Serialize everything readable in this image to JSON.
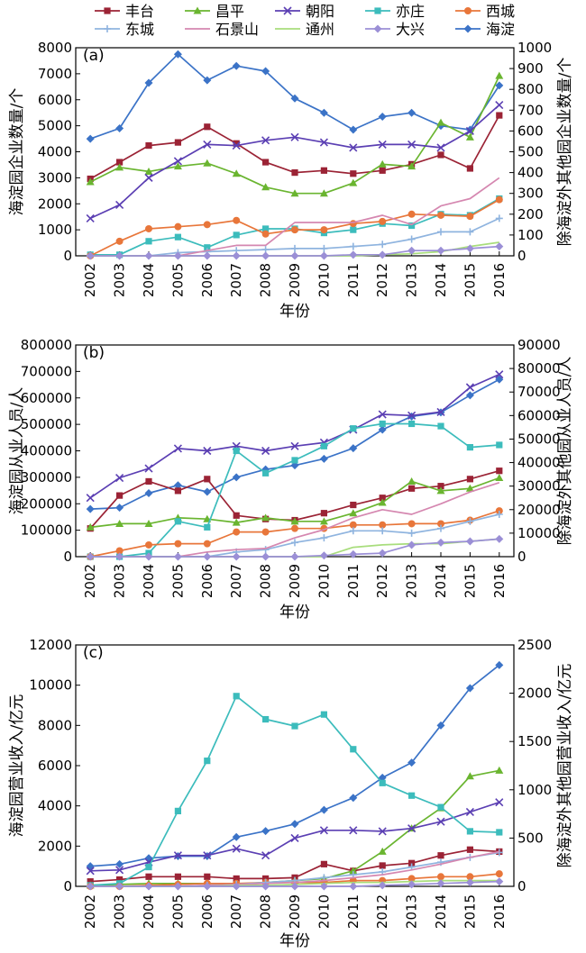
{
  "legend": [
    {
      "name": "丰台",
      "color": "#9b2335",
      "marker": "square"
    },
    {
      "name": "昌平",
      "color": "#6ab530",
      "marker": "triangle"
    },
    {
      "name": "朝阳",
      "color": "#5b3fb3",
      "marker": "x"
    },
    {
      "name": "亦庄",
      "color": "#3cbcbc",
      "marker": "square"
    },
    {
      "name": "西城",
      "color": "#e8763a",
      "marker": "circle"
    },
    {
      "name": "东城",
      "color": "#8fb4df",
      "marker": "plus"
    },
    {
      "name": "石景山",
      "color": "#d587b0",
      "marker": "none"
    },
    {
      "name": "通州",
      "color": "#a8dd7c",
      "marker": "none"
    },
    {
      "name": "大兴",
      "color": "#9b8fd6",
      "marker": "diamond"
    },
    {
      "name": "海淀",
      "color": "#3b73c7",
      "marker": "diamond"
    }
  ],
  "xlabel": "年份",
  "chart_data": [
    {
      "type": "line",
      "panel_label": "(a)",
      "categories": [
        "2002",
        "2003",
        "2004",
        "2005",
        "2006",
        "2007",
        "2008",
        "2009",
        "2010",
        "2011",
        "2012",
        "2013",
        "2014",
        "2015",
        "2016"
      ],
      "xlabel": "年份",
      "ylabel_left": "海淀园企业数量/个",
      "ylabel_right": "除海淀外其他园企业数量/个",
      "ylim_left": [
        0,
        8000
      ],
      "ylim_right": [
        0,
        1000
      ],
      "yticks_left": [
        "0",
        "1000",
        "2000",
        "3000",
        "4000",
        "5000",
        "6000",
        "7000",
        "8000"
      ],
      "yticks_right": [
        "0",
        "100",
        "200",
        "300",
        "400",
        "500",
        "600",
        "700",
        "800",
        "900",
        "1000"
      ],
      "series": [
        {
          "name": "海淀",
          "axis": "left",
          "values": [
            4500,
            4900,
            6650,
            7750,
            6750,
            7300,
            7100,
            6050,
            5500,
            4850,
            5350,
            5500,
            5000,
            4850,
            6550
          ]
        },
        {
          "name": "丰台",
          "axis": "right",
          "values": [
            370,
            450,
            530,
            545,
            620,
            540,
            450,
            400,
            410,
            395,
            410,
            440,
            485,
            420,
            675
          ]
        },
        {
          "name": "昌平",
          "axis": "right",
          "values": [
            355,
            425,
            405,
            430,
            445,
            395,
            330,
            300,
            300,
            350,
            440,
            430,
            640,
            570,
            865
          ]
        },
        {
          "name": "朝阳",
          "axis": "right",
          "values": [
            180,
            245,
            375,
            455,
            535,
            530,
            555,
            570,
            545,
            520,
            535,
            535,
            520,
            600,
            725
          ]
        },
        {
          "name": "亦庄",
          "axis": "right",
          "values": [
            5,
            5,
            70,
            90,
            40,
            100,
            130,
            130,
            110,
            125,
            155,
            145,
            200,
            195,
            275
          ]
        },
        {
          "name": "西城",
          "axis": "right",
          "values": [
            0,
            70,
            130,
            140,
            150,
            170,
            105,
            125,
            125,
            155,
            165,
            200,
            195,
            190,
            270
          ]
        },
        {
          "name": "东城",
          "axis": "right",
          "values": [
            0,
            0,
            0,
            15,
            20,
            25,
            30,
            35,
            35,
            45,
            55,
            80,
            115,
            115,
            180
          ]
        },
        {
          "name": "石景山",
          "axis": "right",
          "values": [
            0,
            0,
            0,
            0,
            25,
            50,
            50,
            160,
            160,
            160,
            195,
            150,
            240,
            275,
            375
          ]
        },
        {
          "name": "通州",
          "axis": "right",
          "values": [
            0,
            0,
            0,
            0,
            0,
            0,
            0,
            0,
            0,
            0,
            5,
            10,
            20,
            45,
            65
          ]
        },
        {
          "name": "大兴",
          "axis": "right",
          "values": [
            0,
            0,
            0,
            0,
            0,
            0,
            0,
            0,
            0,
            5,
            5,
            25,
            25,
            35,
            45
          ]
        }
      ]
    },
    {
      "type": "line",
      "panel_label": "(b)",
      "categories": [
        "2002",
        "2003",
        "2004",
        "2005",
        "2006",
        "2007",
        "2008",
        "2009",
        "2010",
        "2011",
        "2012",
        "2013",
        "2014",
        "2015",
        "2016"
      ],
      "xlabel": "年份",
      "ylabel_left": "海淀园从业人员/人",
      "ylabel_right": "除海淀外其他园从业人员/人",
      "ylim_left": [
        0,
        800000
      ],
      "ylim_right": [
        0,
        90000
      ],
      "yticks_left": [
        "0",
        "100000",
        "200000",
        "300000",
        "400000",
        "500000",
        "600000",
        "700000",
        "800000"
      ],
      "yticks_right": [
        "0",
        "10000",
        "20000",
        "30000",
        "40000",
        "50000",
        "60000",
        "70000",
        "80000",
        "90000"
      ],
      "series": [
        {
          "name": "海淀",
          "axis": "left",
          "values": [
            180000,
            185000,
            240000,
            270000,
            245000,
            300000,
            330000,
            345000,
            370000,
            410000,
            480000,
            530000,
            545000,
            610000,
            670000
          ]
        },
        {
          "name": "丰台",
          "axis": "right",
          "values": [
            12000,
            26000,
            32000,
            28000,
            33000,
            17500,
            16000,
            15500,
            18500,
            22000,
            25000,
            29000,
            30000,
            33000,
            36500
          ]
        },
        {
          "name": "昌平",
          "axis": "right",
          "values": [
            12500,
            14000,
            14000,
            16500,
            16000,
            14500,
            16500,
            15000,
            15000,
            18500,
            23000,
            32000,
            28000,
            29000,
            33500
          ]
        },
        {
          "name": "朝阳",
          "axis": "right",
          "values": [
            25000,
            33500,
            37500,
            46000,
            45000,
            47000,
            45000,
            47000,
            48500,
            54000,
            60500,
            60000,
            61500,
            72000,
            77500
          ]
        },
        {
          "name": "亦庄",
          "axis": "right",
          "values": [
            0,
            0,
            1500,
            15000,
            12500,
            45000,
            35500,
            41000,
            47000,
            54500,
            56500,
            56500,
            55500,
            46500,
            47500
          ]
        },
        {
          "name": "西城",
          "axis": "right",
          "values": [
            0,
            2500,
            5000,
            5500,
            5500,
            10500,
            10500,
            12000,
            12000,
            13500,
            13500,
            14000,
            14000,
            15500,
            19500
          ]
        },
        {
          "name": "东城",
          "axis": "right",
          "values": [
            0,
            0,
            0,
            0,
            0,
            2000,
            3000,
            6000,
            8000,
            11000,
            11000,
            10000,
            12000,
            15000,
            18000
          ]
        },
        {
          "name": "石景山",
          "axis": "right",
          "values": [
            0,
            0,
            0,
            0,
            2000,
            3000,
            3500,
            8000,
            11500,
            16500,
            20000,
            18000,
            22500,
            27500,
            31500
          ]
        },
        {
          "name": "通州",
          "axis": "right",
          "values": [
            0,
            0,
            0,
            0,
            0,
            0,
            0,
            0,
            0,
            4000,
            5000,
            5500,
            5500,
            6500,
            7500
          ]
        },
        {
          "name": "大兴",
          "axis": "right",
          "values": [
            0,
            0,
            0,
            0,
            0,
            0,
            0,
            0,
            500,
            1000,
            1500,
            5000,
            6000,
            6500,
            7500
          ]
        }
      ]
    },
    {
      "type": "line",
      "panel_label": "(c)",
      "categories": [
        "2002",
        "2003",
        "2004",
        "2005",
        "2006",
        "2007",
        "2008",
        "2009",
        "2010",
        "2011",
        "2012",
        "2013",
        "2014",
        "2015",
        "2016"
      ],
      "xlabel": "年份",
      "ylabel_left": "海淀园营业收入/亿元",
      "ylabel_right": "除海淀外其他园营业收入/亿元",
      "ylim_left": [
        0,
        12000
      ],
      "ylim_right": [
        0,
        2500
      ],
      "yticks_left": [
        "0",
        "2000",
        "4000",
        "6000",
        "8000",
        "10000",
        "12000"
      ],
      "yticks_right": [
        "0",
        "500",
        "1000",
        "1500",
        "2000",
        "2500"
      ],
      "series": [
        {
          "name": "海淀",
          "axis": "left",
          "values": [
            1000,
            1100,
            1400,
            1500,
            1500,
            2450,
            2750,
            3100,
            3800,
            4400,
            5400,
            6150,
            8000,
            9850,
            11000
          ]
        },
        {
          "name": "丰台",
          "axis": "right",
          "values": [
            50,
            70,
            100,
            100,
            100,
            80,
            80,
            90,
            230,
            160,
            215,
            240,
            320,
            380,
            360
          ]
        },
        {
          "name": "昌平",
          "axis": "right",
          "values": [
            10,
            20,
            30,
            30,
            30,
            25,
            40,
            60,
            80,
            160,
            360,
            600,
            810,
            1140,
            1200
          ]
        },
        {
          "name": "朝阳",
          "axis": "right",
          "values": [
            160,
            170,
            250,
            320,
            320,
            390,
            320,
            500,
            580,
            580,
            570,
            600,
            670,
            770,
            870
          ]
        },
        {
          "name": "亦庄",
          "axis": "right",
          "values": [
            10,
            30,
            200,
            780,
            1300,
            1970,
            1730,
            1660,
            1780,
            1420,
            1070,
            940,
            820,
            570,
            560
          ]
        },
        {
          "name": "西城",
          "axis": "right",
          "values": [
            0,
            0,
            10,
            20,
            30,
            30,
            40,
            40,
            40,
            60,
            60,
            80,
            100,
            100,
            130
          ]
        },
        {
          "name": "东城",
          "axis": "right",
          "values": [
            0,
            0,
            0,
            0,
            10,
            20,
            40,
            60,
            90,
            120,
            150,
            200,
            250,
            300,
            350
          ]
        },
        {
          "name": "石景山",
          "axis": "right",
          "values": [
            0,
            0,
            0,
            0,
            10,
            20,
            30,
            40,
            60,
            90,
            120,
            170,
            230,
            300,
            360
          ]
        },
        {
          "name": "通州",
          "axis": "right",
          "values": [
            0,
            0,
            0,
            0,
            0,
            10,
            10,
            20,
            30,
            40,
            40,
            50,
            60,
            60,
            60
          ]
        },
        {
          "name": "大兴",
          "axis": "right",
          "values": [
            0,
            0,
            0,
            0,
            0,
            0,
            0,
            0,
            0,
            0,
            10,
            20,
            30,
            40,
            50
          ]
        }
      ]
    }
  ]
}
